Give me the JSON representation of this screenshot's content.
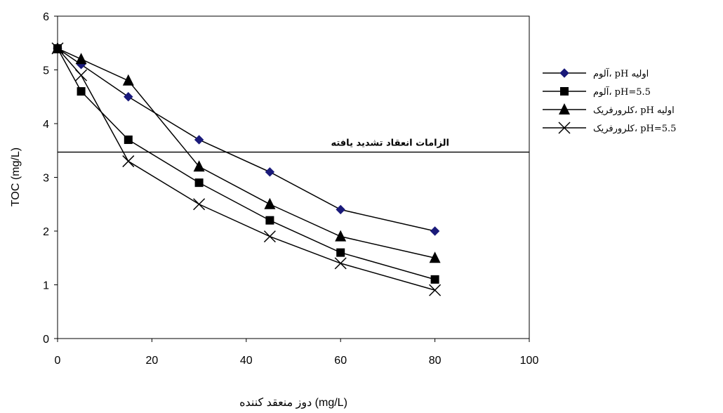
{
  "chart_data": {
    "type": "line",
    "title": "",
    "xlabel": "دوز منعقد کننده (mg/L)",
    "ylabel": "TOC (mg/L)",
    "xlim": [
      0,
      100
    ],
    "ylim": [
      0,
      6
    ],
    "x_ticks": [
      "0",
      "20",
      "40",
      "60",
      "80",
      "100"
    ],
    "y_ticks": [
      "0",
      "1",
      "2",
      "3",
      "4",
      "5",
      "6"
    ],
    "grid": false,
    "legend_position": "right",
    "series": [
      {
        "name": "آلوم، pH اولیه",
        "marker": "diamond",
        "color": "#1a1a7a",
        "x": [
          0,
          5,
          15,
          30,
          45,
          60,
          80
        ],
        "y": [
          5.4,
          5.1,
          4.5,
          3.7,
          3.1,
          2.4,
          2.0
        ]
      },
      {
        "name": "آلوم، pH=5.5",
        "marker": "square",
        "color": "#000000",
        "x": [
          0,
          5,
          15,
          30,
          45,
          60,
          80
        ],
        "y": [
          5.4,
          4.6,
          3.7,
          2.9,
          2.2,
          1.6,
          1.1
        ]
      },
      {
        "name": "کلرورفریک، pH اولیه",
        "marker": "triangle",
        "color": "#000000",
        "x": [
          0,
          5,
          15,
          30,
          45,
          60,
          80
        ],
        "y": [
          5.4,
          5.2,
          4.8,
          3.2,
          2.5,
          1.9,
          1.5
        ]
      },
      {
        "name": "کلرورفریک، pH=5.5",
        "marker": "x",
        "color": "#000000",
        "x": [
          0,
          5,
          15,
          30,
          45,
          60,
          80
        ],
        "y": [
          5.4,
          4.9,
          3.3,
          2.5,
          1.9,
          1.4,
          0.9
        ]
      }
    ],
    "reference_line": {
      "y": 3.47,
      "label": "الزامات انعقاد تشدید یافته"
    }
  }
}
